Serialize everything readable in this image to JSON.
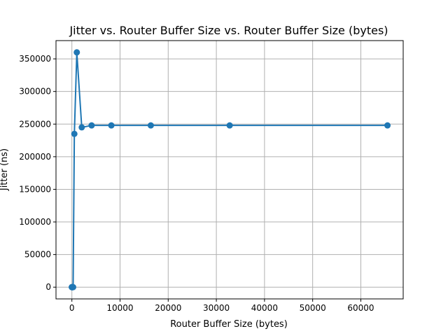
{
  "chart_data": {
    "type": "line",
    "title": "Jitter vs. Router Buffer Size vs. Router Buffer Size (bytes)",
    "xlabel": "Router Buffer Size (bytes)",
    "ylabel": "Jitter (ns)",
    "xlim": [
      -3300,
      68800
    ],
    "ylim": [
      -18000,
      378000
    ],
    "xticks": [
      0,
      10000,
      20000,
      30000,
      40000,
      50000,
      60000
    ],
    "yticks": [
      0,
      50000,
      100000,
      150000,
      200000,
      250000,
      300000,
      350000
    ],
    "grid": true,
    "series": [
      {
        "color": "#1f77b4",
        "marker": "circle",
        "x": [
          1,
          2,
          4,
          8,
          16,
          32,
          64,
          128,
          256,
          512,
          1024,
          2048,
          4096,
          8192,
          16384,
          32768,
          65536
        ],
        "y": [
          0,
          0,
          0,
          0,
          0,
          0,
          0,
          0,
          0,
          235000,
          360000,
          245000,
          248000,
          248000,
          248000,
          248000,
          248000
        ]
      }
    ]
  }
}
